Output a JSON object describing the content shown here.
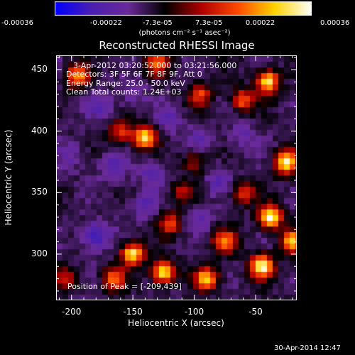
{
  "title": "Reconstructed RHESSI Image",
  "colorbar": {
    "labels": [
      "-0.00036",
      "-0.00022",
      "-7.3e-05",
      "7.3e-05",
      "0.00022",
      "0.00036"
    ],
    "unit_label": "(photons cm⁻² s⁻¹ asec⁻²)",
    "range": [
      -0.00036,
      0.00036
    ],
    "colors": [
      "#0000ff",
      "#4b1fb0",
      "#6a2a9a",
      "#000000",
      "#b00000",
      "#ff4a00",
      "#ffd400",
      "#ffffff"
    ]
  },
  "annotations": {
    "time": "3-Apr-2012 03:20:52.000 to 03:21:56.000",
    "detectors": "Detectors: 3F 5F 6F 7F 8F 9F, Att 0",
    "energy": "Energy Range: 25.0 - 50.0 keV",
    "clean": "Clean     Total counts: 1.24E+03",
    "peak": "Position of Peak = [-209,439]"
  },
  "footer_date": "30-Apr-2014 12:47",
  "chart_data": {
    "type": "heatmap",
    "title": "Reconstructed RHESSI Image",
    "xlabel": "Heliocentric X (arcsec)",
    "ylabel": "Heliocentric Y (arcsec)",
    "xlim": [
      -212,
      -17
    ],
    "ylim": [
      263,
      461
    ],
    "xticks": [
      -200,
      -150,
      -100,
      -50
    ],
    "yticks": [
      300,
      350,
      400,
      450
    ],
    "xtick_labels": [
      "-200",
      "-150",
      "-100",
      "-50"
    ],
    "ytick_labels": [
      "300",
      "350",
      "400",
      "450"
    ],
    "hot_regions": [
      {
        "x": -40,
        "y": 440,
        "level": 0.9
      },
      {
        "x": -60,
        "y": 425,
        "level": 0.6
      },
      {
        "x": -95,
        "y": 430,
        "level": 0.5
      },
      {
        "x": -130,
        "y": 455,
        "level": 0.6
      },
      {
        "x": -195,
        "y": 445,
        "level": 0.7
      },
      {
        "x": -140,
        "y": 395,
        "level": 0.9
      },
      {
        "x": -160,
        "y": 400,
        "level": 0.5
      },
      {
        "x": -25,
        "y": 375,
        "level": 1.0
      },
      {
        "x": -38,
        "y": 330,
        "level": 1.0
      },
      {
        "x": -20,
        "y": 310,
        "level": 0.8
      },
      {
        "x": -60,
        "y": 350,
        "level": 0.5
      },
      {
        "x": -75,
        "y": 310,
        "level": 0.7
      },
      {
        "x": -45,
        "y": 290,
        "level": 1.0
      },
      {
        "x": -90,
        "y": 280,
        "level": 0.8
      },
      {
        "x": -125,
        "y": 285,
        "level": 0.9
      },
      {
        "x": -150,
        "y": 300,
        "level": 0.9
      },
      {
        "x": -165,
        "y": 280,
        "level": 0.6
      },
      {
        "x": -120,
        "y": 325,
        "level": 0.5
      },
      {
        "x": -205,
        "y": 280,
        "level": 0.4
      },
      {
        "x": -100,
        "y": 375,
        "level": 0.35
      },
      {
        "x": -110,
        "y": 350,
        "level": 0.35
      }
    ],
    "cold_regions": [
      {
        "x": -180,
        "y": 315,
        "level": 0.9
      },
      {
        "x": -165,
        "y": 370,
        "level": 0.6
      },
      {
        "x": -140,
        "y": 340,
        "level": 0.5
      },
      {
        "x": -175,
        "y": 420,
        "level": 0.5
      },
      {
        "x": -120,
        "y": 410,
        "level": 0.5
      },
      {
        "x": -80,
        "y": 360,
        "level": 0.5
      },
      {
        "x": -60,
        "y": 395,
        "level": 0.45
      },
      {
        "x": -95,
        "y": 395,
        "level": 0.4
      },
      {
        "x": -200,
        "y": 380,
        "level": 0.4
      },
      {
        "x": -150,
        "y": 430,
        "level": 0.4
      },
      {
        "x": -135,
        "y": 365,
        "level": 0.45
      },
      {
        "x": -95,
        "y": 330,
        "level": 0.4
      }
    ],
    "peak": {
      "x": -209,
      "y": 439
    }
  }
}
